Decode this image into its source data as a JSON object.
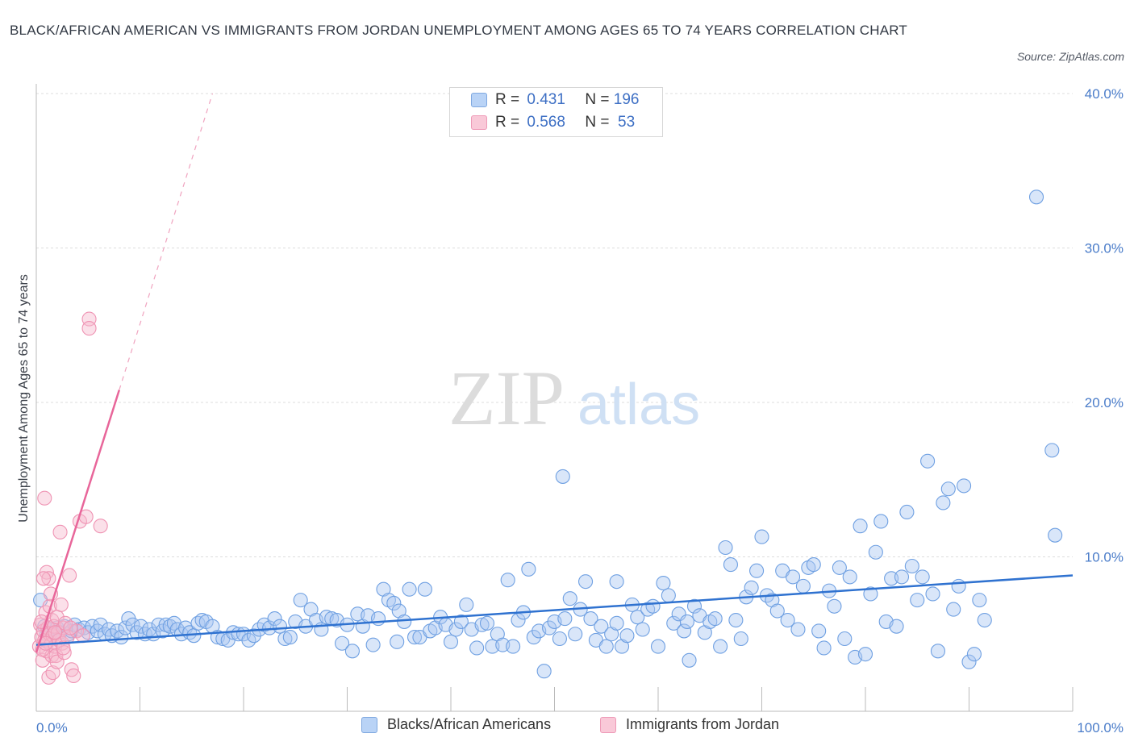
{
  "title": "BLACK/AFRICAN AMERICAN VS IMMIGRANTS FROM JORDAN UNEMPLOYMENT AMONG AGES 65 TO 74 YEARS CORRELATION CHART",
  "source": "Source: ZipAtlas.com",
  "watermark": {
    "zip": "ZIP",
    "atlas": "atlas"
  },
  "legend": {
    "rows": [
      {
        "r_label": "R = ",
        "r_value": "0.431",
        "n_label": "N = ",
        "n_value": "196"
      },
      {
        "r_label": "R = ",
        "r_value": "0.568",
        "n_label": "N = ",
        "n_value": " 53"
      }
    ]
  },
  "chart_data": {
    "type": "scatter",
    "title": "BLACK/AFRICAN AMERICAN VS IMMIGRANTS FROM JORDAN UNEMPLOYMENT AMONG AGES 65 TO 74 YEARS CORRELATION CHART",
    "xlabel": "",
    "ylabel": "Unemployment Among Ages 65 to 74 years",
    "xlim": [
      0,
      100
    ],
    "ylim": [
      0,
      40
    ],
    "x_tick_labels": [
      "0.0%",
      "100.0%"
    ],
    "y_ticks": [
      10,
      20,
      30,
      40
    ],
    "y_tick_labels": [
      "10.0%",
      "20.0%",
      "30.0%",
      "40.0%"
    ],
    "grid": true,
    "legend_position": "bottom",
    "colors": {
      "blue": "#5b9be6",
      "blue_line": "#2f72d0",
      "pink": "#f08aab",
      "pink_line": "#e8669a"
    },
    "series": [
      {
        "name": "Blacks/African Americans",
        "color": "#5b9be6",
        "R": 0.431,
        "N": 196,
        "trend": {
          "x0": 0,
          "y0": 4.3,
          "x1": 100,
          "y1": 8.8
        },
        "points": [
          [
            0.4,
            7.2
          ],
          [
            0.8,
            5.5
          ],
          [
            1.0,
            5.0
          ],
          [
            1.3,
            5.3
          ],
          [
            1.6,
            4.9
          ],
          [
            2.0,
            5.4
          ],
          [
            2.3,
            5.1
          ],
          [
            2.7,
            5.5
          ],
          [
            3.1,
            5.0
          ],
          [
            3.4,
            5.2
          ],
          [
            3.7,
            5.6
          ],
          [
            4.1,
            5.3
          ],
          [
            4.6,
            5.4
          ],
          [
            5.0,
            5.1
          ],
          [
            5.4,
            5.5
          ],
          [
            5.9,
            5.2
          ],
          [
            6.2,
            5.6
          ],
          [
            6.6,
            5.0
          ],
          [
            7.0,
            5.3
          ],
          [
            7.3,
            4.9
          ],
          [
            7.8,
            5.2
          ],
          [
            8.2,
            4.8
          ],
          [
            8.6,
            5.4
          ],
          [
            8.9,
            6.0
          ],
          [
            9.3,
            5.6
          ],
          [
            9.7,
            5.1
          ],
          [
            10.1,
            5.5
          ],
          [
            10.5,
            5.0
          ],
          [
            10.9,
            5.3
          ],
          [
            11.3,
            5.0
          ],
          [
            11.8,
            5.6
          ],
          [
            12.2,
            5.2
          ],
          [
            12.5,
            5.6
          ],
          [
            12.9,
            5.5
          ],
          [
            13.3,
            5.7
          ],
          [
            13.6,
            5.3
          ],
          [
            14.0,
            5.0
          ],
          [
            14.4,
            5.4
          ],
          [
            14.8,
            5.1
          ],
          [
            15.2,
            4.9
          ],
          [
            15.6,
            5.7
          ],
          [
            16.0,
            5.9
          ],
          [
            16.4,
            5.8
          ],
          [
            17.0,
            5.5
          ],
          [
            17.5,
            4.8
          ],
          [
            18.0,
            4.7
          ],
          [
            18.5,
            4.6
          ],
          [
            19.0,
            5.1
          ],
          [
            19.5,
            5.0
          ],
          [
            20.0,
            5.0
          ],
          [
            20.5,
            4.6
          ],
          [
            21.0,
            4.9
          ],
          [
            21.5,
            5.3
          ],
          [
            22.0,
            5.6
          ],
          [
            22.5,
            5.4
          ],
          [
            23.0,
            6.0
          ],
          [
            23.5,
            5.5
          ],
          [
            24.0,
            4.7
          ],
          [
            24.5,
            4.8
          ],
          [
            25.0,
            5.8
          ],
          [
            25.5,
            7.2
          ],
          [
            26.0,
            5.5
          ],
          [
            26.5,
            6.6
          ],
          [
            27.0,
            5.9
          ],
          [
            27.5,
            5.3
          ],
          [
            28.0,
            6.1
          ],
          [
            28.5,
            6.0
          ],
          [
            29.0,
            5.9
          ],
          [
            29.5,
            4.4
          ],
          [
            30.0,
            5.6
          ],
          [
            30.5,
            3.9
          ],
          [
            31.0,
            6.3
          ],
          [
            31.5,
            5.5
          ],
          [
            32.0,
            6.2
          ],
          [
            32.5,
            4.3
          ],
          [
            33.0,
            6.0
          ],
          [
            33.5,
            7.9
          ],
          [
            34.0,
            7.2
          ],
          [
            34.5,
            7.0
          ],
          [
            35.0,
            6.5
          ],
          [
            35.5,
            5.8
          ],
          [
            36.0,
            7.9
          ],
          [
            36.5,
            4.8
          ],
          [
            37.0,
            4.8
          ],
          [
            37.5,
            7.9
          ],
          [
            38.0,
            5.2
          ],
          [
            38.5,
            5.4
          ],
          [
            39.0,
            6.1
          ],
          [
            39.5,
            5.6
          ],
          [
            40.0,
            4.5
          ],
          [
            40.5,
            5.3
          ],
          [
            41.0,
            5.8
          ],
          [
            41.5,
            6.9
          ],
          [
            42.0,
            5.3
          ],
          [
            42.5,
            4.1
          ],
          [
            43.0,
            5.6
          ],
          [
            43.5,
            5.7
          ],
          [
            44.0,
            4.2
          ],
          [
            44.5,
            5.0
          ],
          [
            45.0,
            4.3
          ],
          [
            45.5,
            8.5
          ],
          [
            46.0,
            4.2
          ],
          [
            46.5,
            5.9
          ],
          [
            47.0,
            6.4
          ],
          [
            47.5,
            9.2
          ],
          [
            48.0,
            4.8
          ],
          [
            48.5,
            5.2
          ],
          [
            49.0,
            2.6
          ],
          [
            49.5,
            5.4
          ],
          [
            50.0,
            5.8
          ],
          [
            50.5,
            4.7
          ],
          [
            50.8,
            15.2
          ],
          [
            51.0,
            6.0
          ],
          [
            51.5,
            7.3
          ],
          [
            52.0,
            5.0
          ],
          [
            52.5,
            6.6
          ],
          [
            53.0,
            8.4
          ],
          [
            53.5,
            6.0
          ],
          [
            54.0,
            4.6
          ],
          [
            54.5,
            5.5
          ],
          [
            55.0,
            4.2
          ],
          [
            55.5,
            5.0
          ],
          [
            56.0,
            5.7
          ],
          [
            56.5,
            4.2
          ],
          [
            57.0,
            4.9
          ],
          [
            57.5,
            6.9
          ],
          [
            58.0,
            6.1
          ],
          [
            58.5,
            5.3
          ],
          [
            59.0,
            6.6
          ],
          [
            59.5,
            6.8
          ],
          [
            60.0,
            4.2
          ],
          [
            60.5,
            8.3
          ],
          [
            61.0,
            7.5
          ],
          [
            61.5,
            5.7
          ],
          [
            62.0,
            6.3
          ],
          [
            62.5,
            5.2
          ],
          [
            63.0,
            3.3
          ],
          [
            63.5,
            6.8
          ],
          [
            64.0,
            6.2
          ],
          [
            64.5,
            5.1
          ],
          [
            65.0,
            5.8
          ],
          [
            65.5,
            6.0
          ],
          [
            66.0,
            4.2
          ],
          [
            66.5,
            10.6
          ],
          [
            67.0,
            9.5
          ],
          [
            67.5,
            5.9
          ],
          [
            68.0,
            4.7
          ],
          [
            68.5,
            7.4
          ],
          [
            69.0,
            8.0
          ],
          [
            69.5,
            9.1
          ],
          [
            70.0,
            11.3
          ],
          [
            70.5,
            7.5
          ],
          [
            71.0,
            7.2
          ],
          [
            71.5,
            6.5
          ],
          [
            72.0,
            9.1
          ],
          [
            72.5,
            5.9
          ],
          [
            73.0,
            8.7
          ],
          [
            73.5,
            5.3
          ],
          [
            74.0,
            8.1
          ],
          [
            74.5,
            9.3
          ],
          [
            75.0,
            9.5
          ],
          [
            75.5,
            5.2
          ],
          [
            76.0,
            4.1
          ],
          [
            76.5,
            7.8
          ],
          [
            77.0,
            6.8
          ],
          [
            77.5,
            9.3
          ],
          [
            78.0,
            4.7
          ],
          [
            78.5,
            8.7
          ],
          [
            79.0,
            3.5
          ],
          [
            79.5,
            12.0
          ],
          [
            80.0,
            3.7
          ],
          [
            80.5,
            7.6
          ],
          [
            81.0,
            10.3
          ],
          [
            81.5,
            12.3
          ],
          [
            82.0,
            5.8
          ],
          [
            82.5,
            8.6
          ],
          [
            83.0,
            5.5
          ],
          [
            83.5,
            8.7
          ],
          [
            84.0,
            12.9
          ],
          [
            84.5,
            9.4
          ],
          [
            85.0,
            7.2
          ],
          [
            85.5,
            8.7
          ],
          [
            86.0,
            16.2
          ],
          [
            86.5,
            7.6
          ],
          [
            87.0,
            3.9
          ],
          [
            87.5,
            13.5
          ],
          [
            88.0,
            14.4
          ],
          [
            88.5,
            6.6
          ],
          [
            89.0,
            8.1
          ],
          [
            89.5,
            14.6
          ],
          [
            90.0,
            3.2
          ],
          [
            90.5,
            3.7
          ],
          [
            91.0,
            7.2
          ],
          [
            91.5,
            5.9
          ],
          [
            96.5,
            33.3
          ],
          [
            98.0,
            16.9
          ],
          [
            98.3,
            11.4
          ],
          [
            62.8,
            5.8
          ],
          [
            56.0,
            8.4
          ],
          [
            34.8,
            4.5
          ]
        ]
      },
      {
        "name": "Immigrants from Jordan",
        "color": "#f08aab",
        "R": 0.568,
        "N": 53,
        "trend": {
          "x0": 0,
          "y0": 3.8,
          "x1": 8,
          "y1": 20.8,
          "dash_x1": 17,
          "dash_y1": 40
        },
        "points": [
          [
            0.3,
            4.2
          ],
          [
            0.4,
            5.6
          ],
          [
            0.5,
            4.8
          ],
          [
            0.6,
            3.3
          ],
          [
            0.7,
            5.2
          ],
          [
            0.8,
            4.6
          ],
          [
            0.9,
            6.4
          ],
          [
            1.0,
            9.0
          ],
          [
            1.0,
            3.9
          ],
          [
            1.1,
            5.4
          ],
          [
            1.1,
            4.5
          ],
          [
            1.2,
            8.6
          ],
          [
            1.2,
            2.2
          ],
          [
            1.3,
            5.0
          ],
          [
            1.3,
            6.8
          ],
          [
            1.4,
            4.3
          ],
          [
            1.4,
            7.6
          ],
          [
            1.5,
            3.6
          ],
          [
            1.5,
            5.9
          ],
          [
            1.6,
            4.9
          ],
          [
            1.6,
            2.5
          ],
          [
            1.7,
            5.5
          ],
          [
            1.8,
            4.2
          ],
          [
            1.9,
            3.6
          ],
          [
            2.0,
            6.1
          ],
          [
            2.0,
            3.2
          ],
          [
            2.1,
            5.1
          ],
          [
            2.2,
            4.6
          ],
          [
            2.3,
            11.6
          ],
          [
            2.4,
            6.9
          ],
          [
            2.5,
            4.4
          ],
          [
            2.6,
            5.4
          ],
          [
            2.7,
            3.8
          ],
          [
            2.8,
            5.7
          ],
          [
            3.0,
            4.8
          ],
          [
            3.2,
            8.8
          ],
          [
            3.4,
            2.7
          ],
          [
            3.6,
            2.3
          ],
          [
            3.9,
            5.2
          ],
          [
            4.2,
            12.3
          ],
          [
            4.5,
            4.9
          ],
          [
            4.8,
            12.6
          ],
          [
            5.1,
            25.4
          ],
          [
            5.1,
            24.8
          ],
          [
            6.2,
            12.0
          ],
          [
            0.8,
            13.8
          ],
          [
            0.5,
            5.8
          ],
          [
            0.6,
            4.0
          ],
          [
            0.9,
            4.4
          ],
          [
            1.8,
            5.1
          ],
          [
            2.6,
            4.1
          ],
          [
            3.3,
            5.4
          ],
          [
            0.7,
            8.6
          ]
        ]
      }
    ]
  }
}
